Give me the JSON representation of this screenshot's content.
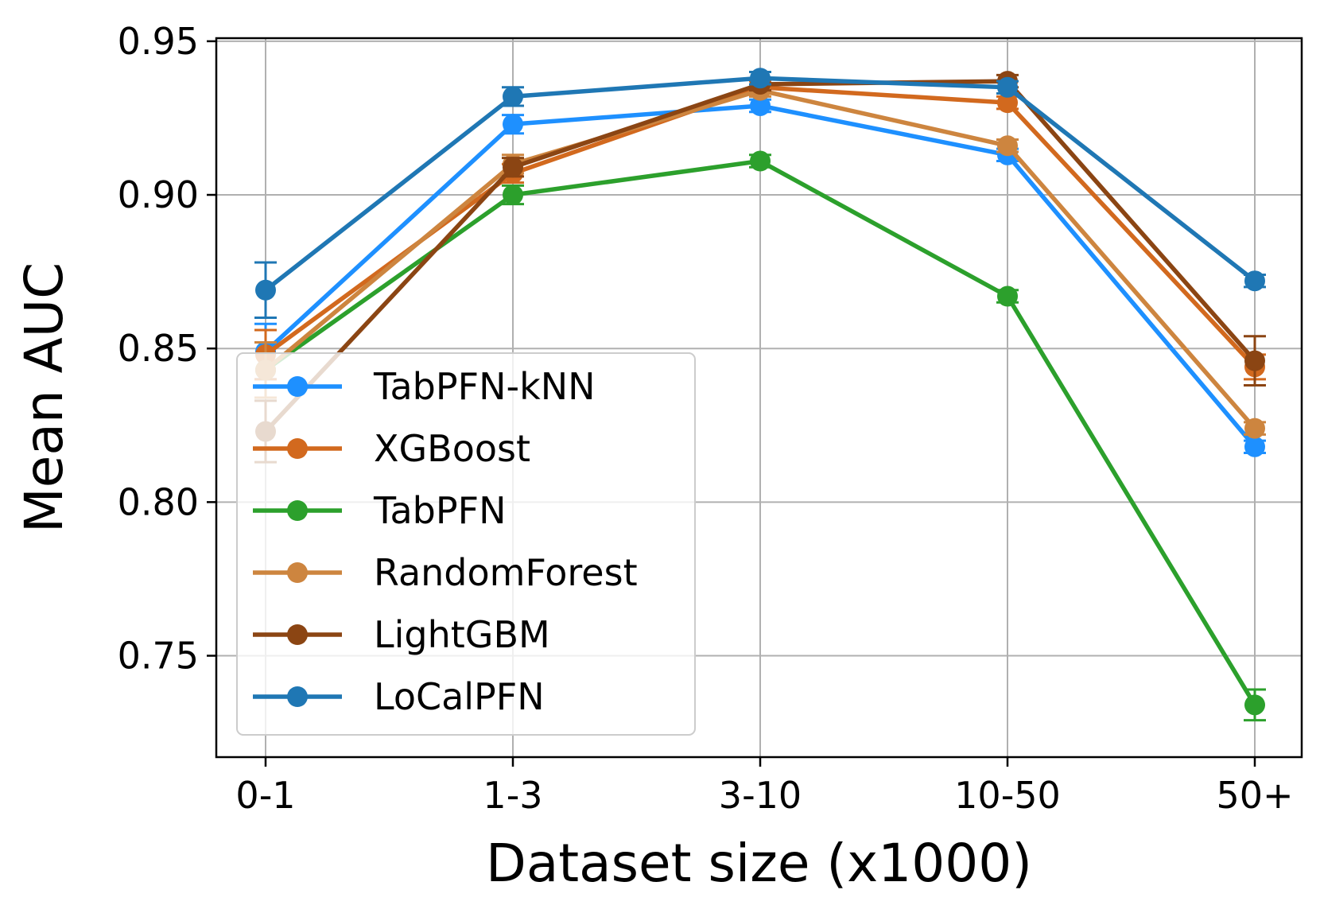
{
  "chart_data": {
    "type": "line",
    "title": "",
    "xlabel": "Dataset size (x1000)",
    "ylabel": "Mean AUC",
    "categories": [
      "0-1",
      "1-3",
      "3-10",
      "10-50",
      "50+"
    ],
    "ylim": [
      0.717,
      0.951
    ],
    "yticks": [
      0.75,
      0.8,
      0.85,
      0.9,
      0.95
    ],
    "ytick_labels": [
      "0.75",
      "0.80",
      "0.85",
      "0.90",
      "0.95"
    ],
    "grid": true,
    "legend_position": "lower-left",
    "series": [
      {
        "name": "TabPFN-kNN",
        "color": "#1e90ff",
        "values": [
          0.849,
          0.923,
          0.929,
          0.913,
          0.818
        ],
        "errors": [
          0.009,
          0.003,
          0.002,
          0.002,
          0.002
        ]
      },
      {
        "name": "XGBoost",
        "color": "#d2691e",
        "values": [
          0.848,
          0.907,
          0.935,
          0.93,
          0.844
        ],
        "errors": [
          0.008,
          0.003,
          0.002,
          0.002,
          0.004
        ]
      },
      {
        "name": "TabPFN",
        "color": "#2ca02c",
        "values": [
          0.843,
          0.9,
          0.911,
          0.867,
          0.734
        ],
        "errors": [
          0.009,
          0.003,
          0.002,
          0.002,
          0.005
        ]
      },
      {
        "name": "RandomForest",
        "color": "#cd853f",
        "values": [
          0.843,
          0.91,
          0.934,
          0.916,
          0.824
        ],
        "errors": [
          0.009,
          0.003,
          0.002,
          0.002,
          0.002
        ]
      },
      {
        "name": "LightGBM",
        "color": "#8b4513",
        "values": [
          0.823,
          0.909,
          0.936,
          0.937,
          0.846
        ],
        "errors": [
          0.01,
          0.003,
          0.002,
          0.002,
          0.008
        ]
      },
      {
        "name": "LoCalPFN",
        "color": "#1f77b4",
        "values": [
          0.869,
          0.932,
          0.938,
          0.935,
          0.872
        ],
        "errors": [
          0.009,
          0.003,
          0.002,
          0.002,
          0.002
        ]
      }
    ]
  }
}
